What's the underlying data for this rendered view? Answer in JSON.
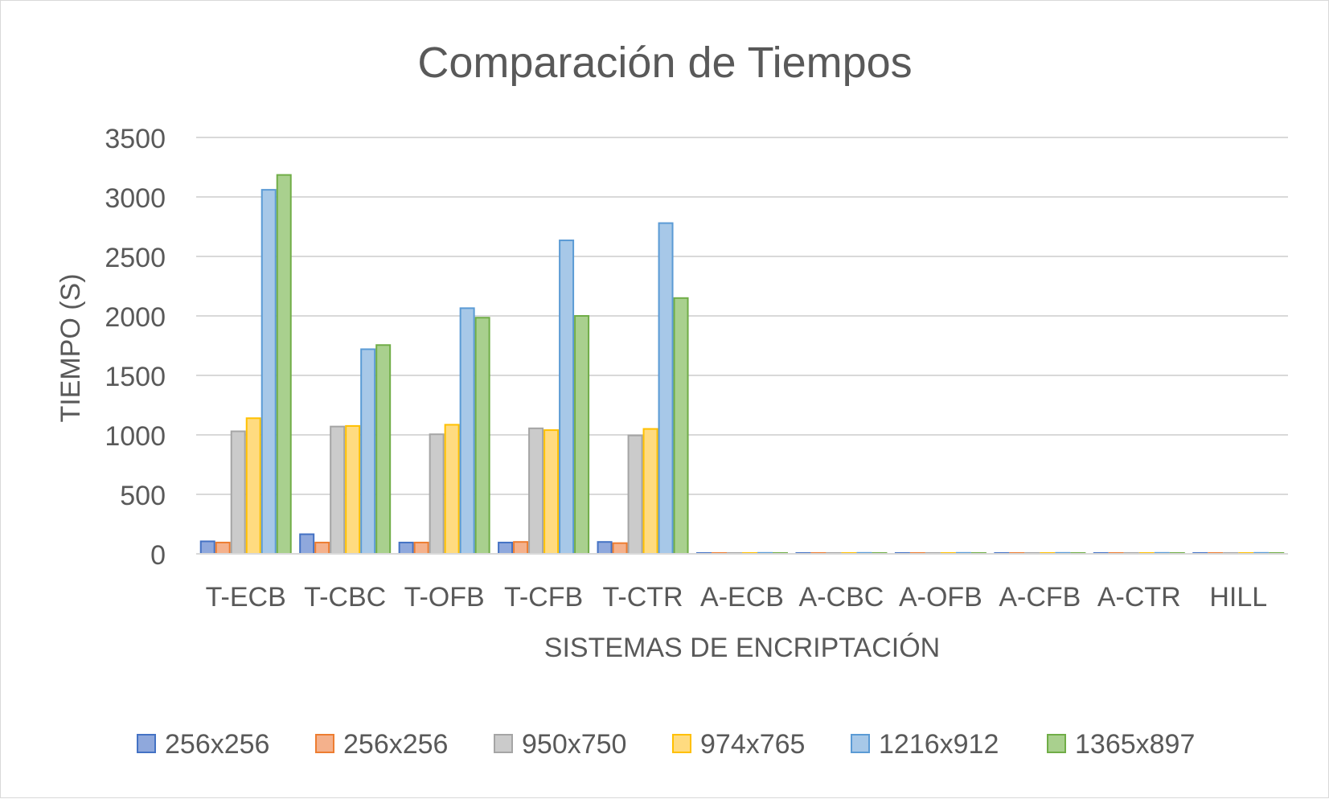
{
  "chart_data": {
    "type": "bar",
    "title": "Comparación de Tiempos",
    "xlabel": "SISTEMAS DE ENCRIPTACIÓN",
    "ylabel": "TIEMPO (S)",
    "ylim": [
      0,
      3500
    ],
    "yticks": [
      0,
      500,
      1000,
      1500,
      2000,
      2500,
      3000,
      3500
    ],
    "grid": true,
    "legend_position": "bottom",
    "categories": [
      "T-ECB",
      "T-CBC",
      "T-OFB",
      "T-CFB",
      "T-CTR",
      "A-ECB",
      "A-CBC",
      "A-OFB",
      "A-CFB",
      "A-CTR",
      "HILL"
    ],
    "series": [
      {
        "name": "256x256",
        "color": "#4472c4",
        "fill": "#8fa8dc",
        "values": [
          105,
          165,
          95,
          95,
          100,
          3,
          3,
          3,
          3,
          3,
          3
        ]
      },
      {
        "name": "256x256",
        "color": "#ed7d31",
        "fill": "#f4b18c",
        "values": [
          95,
          95,
          95,
          100,
          90,
          3,
          3,
          3,
          3,
          3,
          3
        ]
      },
      {
        "name": "950x750",
        "color": "#a5a5a5",
        "fill": "#cbcbcb",
        "values": [
          1030,
          1070,
          1005,
          1055,
          995,
          3,
          3,
          3,
          3,
          3,
          3
        ]
      },
      {
        "name": "974x765",
        "color": "#ffc000",
        "fill": "#ffdb80",
        "values": [
          1140,
          1075,
          1085,
          1040,
          1050,
          3,
          3,
          3,
          3,
          3,
          4
        ]
      },
      {
        "name": "1216x912",
        "color": "#5b9bd5",
        "fill": "#a7c8e8",
        "values": [
          3060,
          1720,
          2065,
          2635,
          2780,
          8,
          8,
          8,
          8,
          8,
          8
        ]
      },
      {
        "name": "1365x897",
        "color": "#70ad47",
        "fill": "#a9d08e",
        "values": [
          3185,
          1755,
          1985,
          2000,
          2150,
          4,
          4,
          4,
          4,
          4,
          4
        ]
      }
    ]
  }
}
